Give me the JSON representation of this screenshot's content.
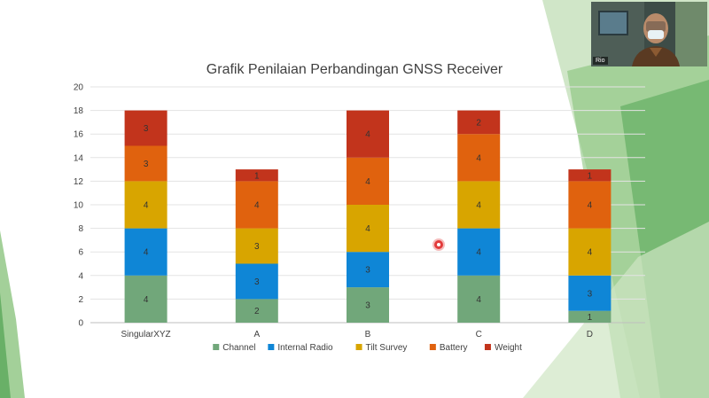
{
  "participant": {
    "name": "Rio"
  },
  "chart_data": {
    "type": "stacked-bar",
    "title": "Grafik Penilaian Perbandingan GNSS Receiver",
    "categories": [
      "SingularXYZ",
      "A",
      "B",
      "C",
      "D"
    ],
    "series": [
      {
        "name": "Channel",
        "color": "#71a77a",
        "values": [
          4,
          2,
          3,
          4,
          1
        ]
      },
      {
        "name": "Internal Radio",
        "color": "#0f86d6",
        "values": [
          4,
          3,
          3,
          4,
          3
        ]
      },
      {
        "name": "Tilt Survey",
        "color": "#d8a500",
        "values": [
          4,
          3,
          4,
          4,
          4
        ]
      },
      {
        "name": "Battery",
        "color": "#e0620e",
        "values": [
          3,
          4,
          4,
          4,
          4
        ]
      },
      {
        "name": "Weight",
        "color": "#c2341c",
        "values": [
          3,
          1,
          4,
          2,
          1
        ]
      }
    ],
    "ylim": [
      0,
      20
    ],
    "yticks": [
      "0",
      "2",
      "4",
      "6",
      "8",
      "10",
      "12",
      "14",
      "16",
      "18",
      "20"
    ],
    "grid": true,
    "legend": "bottom"
  }
}
